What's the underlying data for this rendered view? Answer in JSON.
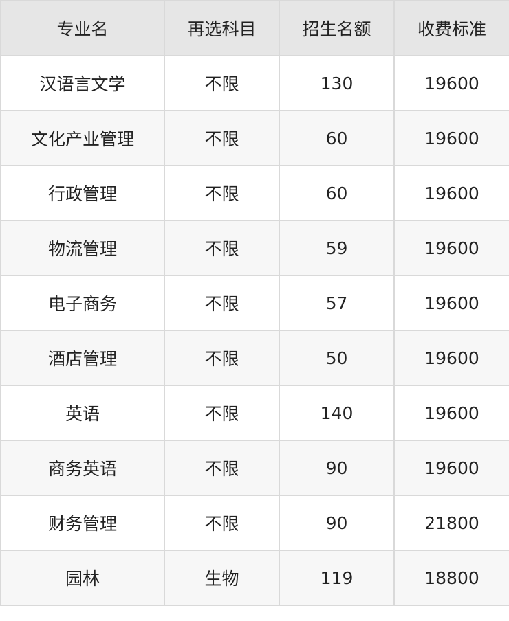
{
  "headers": [
    "专业名",
    "再选科目",
    "招生名额",
    "收费标准"
  ],
  "rows": [
    [
      "汉语言文学",
      "不限",
      "130",
      "19600"
    ],
    [
      "文化产业管理",
      "不限",
      "60",
      "19600"
    ],
    [
      "行政管理",
      "不限",
      "60",
      "19600"
    ],
    [
      "物流管理",
      "不限",
      "59",
      "19600"
    ],
    [
      "电子商务",
      "不限",
      "57",
      "19600"
    ],
    [
      "酒店管理",
      "不限",
      "50",
      "19600"
    ],
    [
      "英语",
      "不限",
      "140",
      "19600"
    ],
    [
      "商务英语",
      "不限",
      "90",
      "19600"
    ],
    [
      "财务管理",
      "不限",
      "90",
      "21800"
    ],
    [
      "园林",
      "生物",
      "119",
      "18800"
    ]
  ]
}
